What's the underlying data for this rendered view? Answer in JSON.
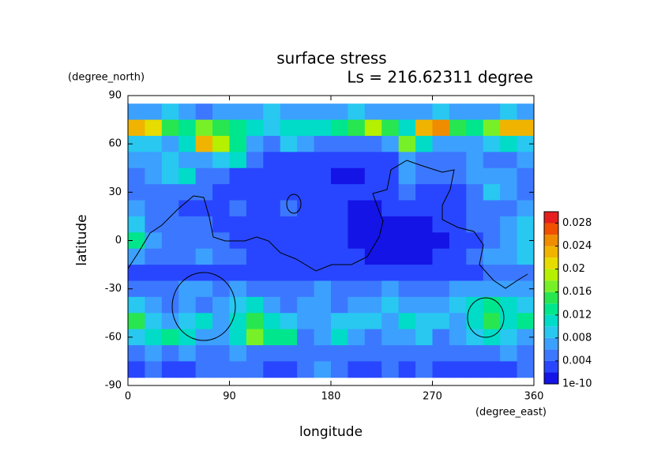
{
  "chart_data": {
    "type": "heatmap",
    "title": "surface stress",
    "subtitle": "Ls = 216.62311 degree",
    "y_units": "(degree_north)",
    "x_units": "(degree_east)",
    "xlabel": "longitude",
    "ylabel": "latitude",
    "xlim": [
      0,
      360
    ],
    "xticks": [
      0,
      90,
      180,
      270,
      360
    ],
    "ylim": [
      -90,
      90
    ],
    "yticks": [
      90,
      60,
      30,
      0,
      -30,
      -60,
      -90
    ],
    "x": [
      7.5,
      22.5,
      37.5,
      52.5,
      67.5,
      82.5,
      97.5,
      112.5,
      127.5,
      142.5,
      157.5,
      172.5,
      187.5,
      202.5,
      217.5,
      232.5,
      247.5,
      262.5,
      277.5,
      292.5,
      307.5,
      322.5,
      337.5,
      352.5
    ],
    "y": [
      80,
      70,
      60,
      50,
      40,
      30,
      20,
      10,
      0,
      -10,
      -20,
      -30,
      -40,
      -50,
      -60,
      -70,
      -80
    ],
    "z": [
      [
        0.007,
        0.006,
        0.008,
        0.006,
        0.005,
        0.006,
        0.007,
        0.006,
        0.008,
        0.007,
        0.006,
        0.006,
        0.007,
        0.008,
        0.006,
        0.007,
        0.006,
        0.007,
        0.008,
        0.006,
        0.007,
        0.006,
        0.008,
        0.007
      ],
      [
        0.022,
        0.02,
        0.014,
        0.012,
        0.016,
        0.014,
        0.012,
        0.01,
        0.009,
        0.01,
        0.011,
        0.01,
        0.012,
        0.014,
        0.018,
        0.014,
        0.011,
        0.022,
        0.024,
        0.014,
        0.012,
        0.016,
        0.022,
        0.022
      ],
      [
        0.008,
        0.008,
        0.007,
        0.01,
        0.022,
        0.018,
        0.012,
        0.007,
        0.005,
        0.008,
        0.006,
        0.004,
        0.004,
        0.004,
        0.005,
        0.007,
        0.016,
        0.01,
        0.007,
        0.006,
        0.006,
        0.008,
        0.01,
        0.009
      ],
      [
        0.006,
        0.007,
        0.008,
        0.007,
        0.006,
        0.008,
        0.01,
        0.005,
        0.003,
        0.002,
        0.002,
        0.002,
        0.002,
        0.002,
        0.003,
        0.003,
        0.006,
        0.005,
        0.004,
        0.004,
        0.006,
        0.005,
        0.005,
        0.006
      ],
      [
        0.005,
        0.006,
        0.009,
        0.011,
        0.005,
        0.004,
        0.003,
        0.002,
        0.002,
        0.002,
        0.002,
        0.002,
        0.001,
        0.001,
        0.002,
        0.003,
        0.006,
        0.005,
        0.004,
        0.004,
        0.006,
        0.007,
        0.006,
        0.005
      ],
      [
        0.004,
        0.004,
        0.005,
        0.005,
        0.004,
        0.003,
        0.003,
        0.003,
        0.003,
        0.003,
        0.002,
        0.002,
        0.002,
        0.002,
        0.002,
        0.003,
        0.004,
        0.003,
        0.003,
        0.003,
        0.005,
        0.008,
        0.006,
        0.005
      ],
      [
        0.006,
        0.004,
        0.004,
        0.003,
        0.003,
        0.003,
        0.004,
        0.003,
        0.002,
        0.004,
        0.002,
        0.002,
        0.002,
        0.001,
        0.001,
        0.002,
        0.002,
        0.002,
        0.002,
        0.003,
        0.004,
        0.005,
        0.005,
        0.006
      ],
      [
        0.008,
        0.005,
        0.004,
        0.004,
        0.004,
        0.003,
        0.003,
        0.003,
        0.003,
        0.002,
        0.002,
        0.002,
        0.002,
        0.001,
        0.001,
        0.001,
        0.001,
        0.001,
        0.002,
        0.002,
        0.004,
        0.005,
        0.006,
        0.008
      ],
      [
        0.012,
        0.006,
        0.004,
        0.005,
        0.005,
        0.004,
        0.003,
        0.003,
        0.002,
        0.002,
        0.002,
        0.002,
        0.002,
        0.001,
        0.001,
        0.001,
        0.001,
        0.001,
        0.001,
        0.002,
        0.003,
        0.005,
        0.006,
        0.009
      ],
      [
        0.007,
        0.005,
        0.004,
        0.005,
        0.006,
        0.005,
        0.004,
        0.003,
        0.003,
        0.002,
        0.002,
        0.002,
        0.002,
        0.002,
        0.001,
        0.001,
        0.001,
        0.001,
        0.002,
        0.003,
        0.004,
        0.006,
        0.007,
        0.008
      ],
      [
        0.003,
        0.003,
        0.003,
        0.003,
        0.003,
        0.003,
        0.002,
        0.002,
        0.002,
        0.002,
        0.002,
        0.002,
        0.002,
        0.002,
        0.002,
        0.002,
        0.002,
        0.002,
        0.002,
        0.003,
        0.003,
        0.004,
        0.004,
        0.004
      ],
      [
        0.004,
        0.004,
        0.005,
        0.006,
        0.006,
        0.005,
        0.006,
        0.005,
        0.004,
        0.005,
        0.005,
        0.006,
        0.005,
        0.005,
        0.005,
        0.006,
        0.005,
        0.005,
        0.005,
        0.006,
        0.006,
        0.007,
        0.007,
        0.006
      ],
      [
        0.008,
        0.006,
        0.005,
        0.006,
        0.005,
        0.006,
        0.008,
        0.01,
        0.006,
        0.005,
        0.006,
        0.006,
        0.005,
        0.006,
        0.007,
        0.008,
        0.006,
        0.007,
        0.006,
        0.008,
        0.01,
        0.012,
        0.01,
        0.008
      ],
      [
        0.014,
        0.008,
        0.006,
        0.008,
        0.01,
        0.007,
        0.01,
        0.015,
        0.01,
        0.009,
        0.006,
        0.006,
        0.008,
        0.008,
        0.009,
        0.006,
        0.01,
        0.008,
        0.008,
        0.007,
        0.01,
        0.014,
        0.01,
        0.012
      ],
      [
        0.008,
        0.01,
        0.012,
        0.011,
        0.007,
        0.006,
        0.01,
        0.016,
        0.012,
        0.012,
        0.004,
        0.006,
        0.01,
        0.006,
        0.004,
        0.006,
        0.007,
        0.008,
        0.005,
        0.006,
        0.008,
        0.01,
        0.008,
        0.007
      ],
      [
        0.005,
        0.006,
        0.005,
        0.006,
        0.005,
        0.005,
        0.006,
        0.005,
        0.005,
        0.004,
        0.004,
        0.005,
        0.005,
        0.004,
        0.005,
        0.004,
        0.004,
        0.005,
        0.004,
        0.004,
        0.004,
        0.005,
        0.006,
        0.005
      ],
      [
        0.003,
        0.004,
        0.003,
        0.003,
        0.004,
        0.004,
        0.005,
        0.004,
        0.003,
        0.003,
        0.004,
        0.006,
        0.004,
        0.003,
        0.003,
        0.004,
        0.003,
        0.004,
        0.003,
        0.003,
        0.003,
        0.003,
        0.003,
        0.004
      ]
    ],
    "colorbar": {
      "levels": [
        0,
        0.002,
        0.004,
        0.006,
        0.008,
        0.01,
        0.012,
        0.014,
        0.016,
        0.018,
        0.02,
        0.022,
        0.024,
        0.026,
        0.028,
        0.03
      ],
      "colors": [
        "#1414e6",
        "#2846ff",
        "#3c78ff",
        "#3ca0ff",
        "#28c8f0",
        "#00dcc8",
        "#00e68c",
        "#28e650",
        "#78f028",
        "#b4f000",
        "#e6dc00",
        "#f0b400",
        "#f08c00",
        "#f05000",
        "#e61e1e"
      ],
      "ticks": [
        {
          "value": 1e-10,
          "label": "1e-10"
        },
        0.004,
        0.008,
        0.012,
        0.016,
        0.02,
        0.024,
        0.028
      ]
    }
  }
}
